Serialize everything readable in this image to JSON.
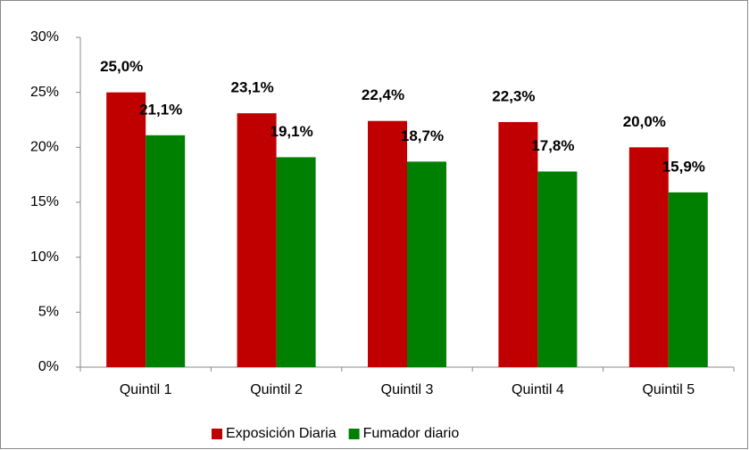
{
  "chart_data": {
    "type": "bar",
    "categories": [
      "Quintil 1",
      "Quintil 2",
      "Quintil 3",
      "Quintil 4",
      "Quintil 5"
    ],
    "series": [
      {
        "name": "Exposición Diaria",
        "color": "#c00000",
        "values": [
          25.0,
          23.1,
          22.4,
          22.3,
          20.0
        ],
        "value_labels": [
          "25,0%",
          "23,1%",
          "22,4%",
          "22,3%",
          "20,0%"
        ]
      },
      {
        "name": "Fumador diario",
        "color": "#008000",
        "values": [
          21.1,
          19.1,
          18.7,
          17.8,
          15.9
        ],
        "value_labels": [
          "21,1%",
          "19,1%",
          "18,7%",
          "17,8%",
          "15,9%"
        ]
      }
    ],
    "ylim": [
      0,
      30
    ],
    "yticks": [
      {
        "value": 0,
        "label": "0%"
      },
      {
        "value": 5,
        "label": "5%"
      },
      {
        "value": 10,
        "label": "10%"
      },
      {
        "value": 15,
        "label": "15%"
      },
      {
        "value": 20,
        "label": "20%"
      },
      {
        "value": 25,
        "label": "25%"
      },
      {
        "value": 30,
        "label": "30%"
      }
    ],
    "grid": false,
    "legend": "bottom"
  }
}
